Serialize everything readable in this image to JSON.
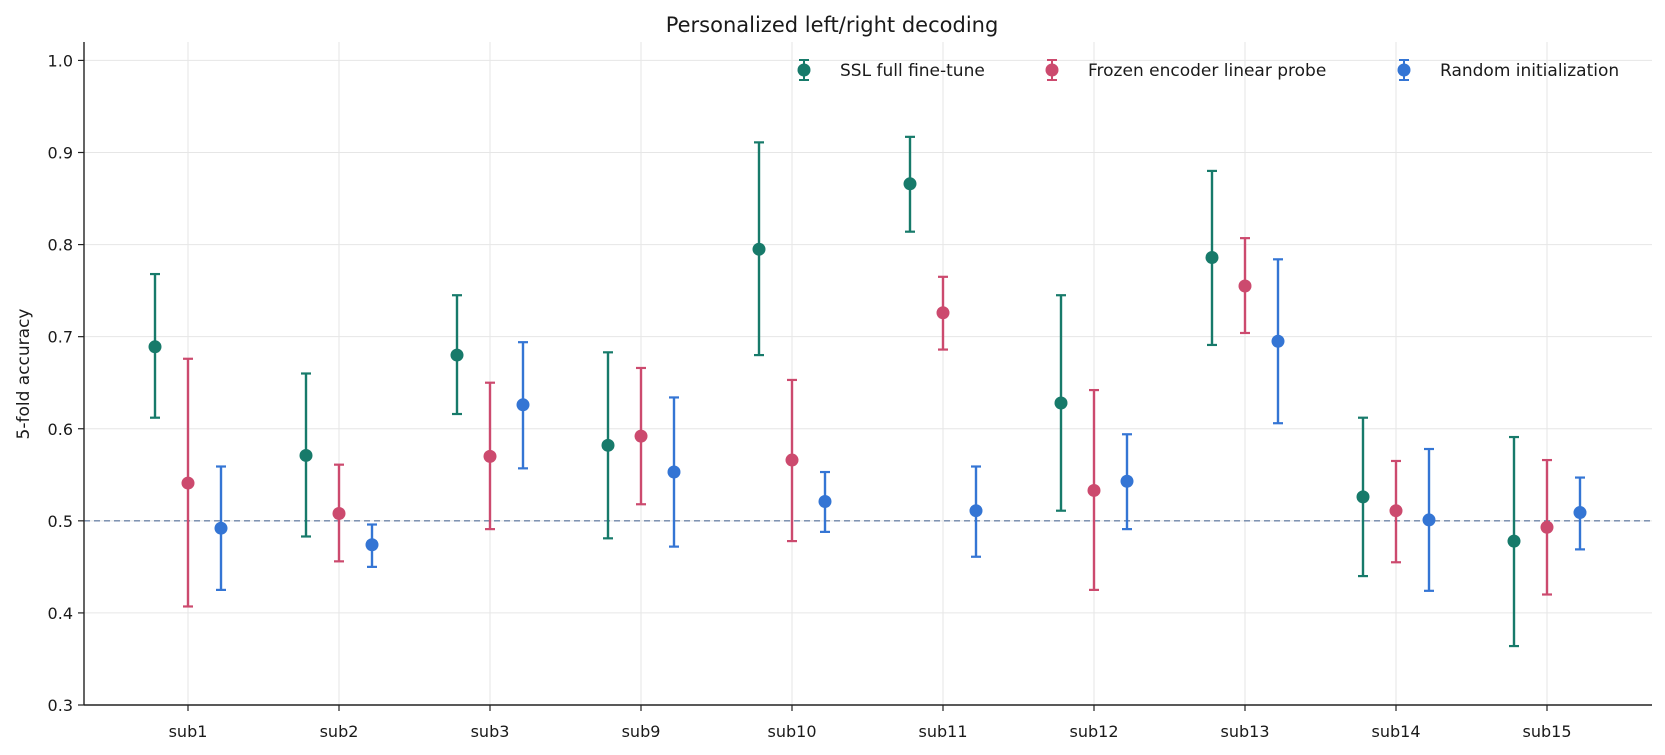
{
  "chart_data": {
    "type": "scatter",
    "title": "Personalized left/right decoding",
    "xlabel": "",
    "ylabel": "5-fold accuracy",
    "ylim": [
      0.3,
      1.02
    ],
    "yticks": [
      "0.3",
      "0.4",
      "0.5",
      "0.6",
      "0.7",
      "0.8",
      "0.9",
      "1.0"
    ],
    "categories": [
      "sub1",
      "sub2",
      "sub3",
      "sub9",
      "sub10",
      "sub11",
      "sub12",
      "sub13",
      "sub14",
      "sub15"
    ],
    "reference_line": 0.5,
    "grid": true,
    "legend_position": "top-right",
    "series": [
      {
        "name": "SSL full fine-tune",
        "color": "#177a6a",
        "values": [
          0.689,
          0.571,
          0.68,
          0.582,
          0.795,
          0.866,
          0.628,
          0.786,
          0.526,
          0.478
        ],
        "lower": [
          0.612,
          0.483,
          0.616,
          0.481,
          0.68,
          0.814,
          0.511,
          0.691,
          0.44,
          0.364
        ],
        "upper": [
          0.768,
          0.66,
          0.745,
          0.683,
          0.911,
          0.917,
          0.745,
          0.88,
          0.612,
          0.591
        ]
      },
      {
        "name": "Frozen encoder linear probe",
        "color": "#cc4a6e",
        "values": [
          0.541,
          0.508,
          0.57,
          0.592,
          0.566,
          0.726,
          0.533,
          0.755,
          0.511,
          0.493
        ],
        "lower": [
          0.407,
          0.456,
          0.491,
          0.518,
          0.478,
          0.686,
          0.425,
          0.704,
          0.455,
          0.42
        ],
        "upper": [
          0.676,
          0.561,
          0.65,
          0.666,
          0.653,
          0.765,
          0.642,
          0.807,
          0.565,
          0.566
        ]
      },
      {
        "name": "Random initialization",
        "color": "#3475d4",
        "values": [
          0.492,
          0.474,
          0.626,
          0.553,
          0.521,
          0.511,
          0.543,
          0.695,
          0.501,
          0.509
        ],
        "lower": [
          0.425,
          0.45,
          0.557,
          0.472,
          0.488,
          0.461,
          0.491,
          0.606,
          0.424,
          0.469
        ],
        "upper": [
          0.559,
          0.496,
          0.694,
          0.634,
          0.553,
          0.559,
          0.594,
          0.784,
          0.578,
          0.547
        ]
      }
    ]
  }
}
